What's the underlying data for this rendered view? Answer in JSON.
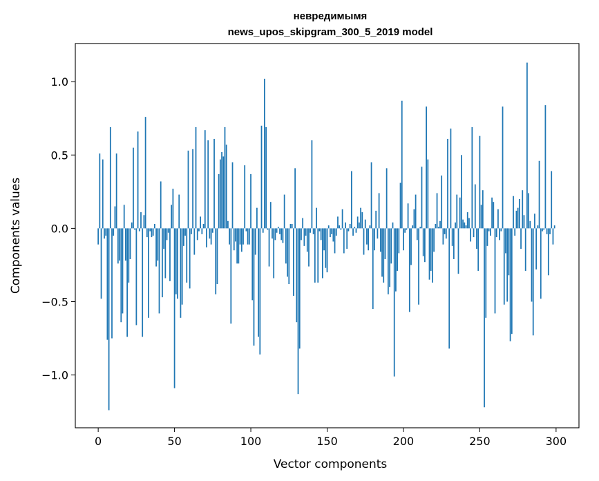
{
  "chart_data": {
    "type": "bar",
    "title": "невредимымя",
    "subtitle": "news_upos_skipgram_300_5_2019 model",
    "xlabel": "Vector components",
    "ylabel": "Components values",
    "xlim": [
      -15,
      315
    ],
    "ylim": [
      -1.36,
      1.26
    ],
    "xticks": [
      0,
      50,
      100,
      150,
      200,
      250,
      300
    ],
    "yticks": [
      -1.0,
      -0.5,
      0.0,
      0.5,
      1.0
    ],
    "ytick_labels": [
      "−1.0",
      "−0.5",
      "0.0",
      "0.5",
      "1.0"
    ],
    "grid": false,
    "legend": "none",
    "color": "#1f77b4",
    "categories_count": 300,
    "values": [
      -0.11,
      0.51,
      -0.48,
      0.47,
      -0.07,
      -0.05,
      -0.76,
      -1.24,
      0.69,
      -0.75,
      -0.05,
      0.15,
      0.51,
      -0.24,
      -0.22,
      -0.64,
      -0.58,
      0.16,
      -0.22,
      -0.74,
      -0.37,
      -0.21,
      0.04,
      0.55,
      -0.01,
      -0.66,
      0.66,
      -0.02,
      0.11,
      -0.74,
      0.09,
      0.76,
      -0.06,
      -0.61,
      -0.02,
      -0.06,
      -0.05,
      0.03,
      -0.26,
      -0.22,
      -0.58,
      0.32,
      -0.47,
      -0.14,
      -0.34,
      -0.08,
      -0.03,
      -0.36,
      0.16,
      0.27,
      -1.09,
      -0.45,
      -0.48,
      0.23,
      -0.61,
      -0.52,
      -0.12,
      -0.05,
      -0.37,
      0.53,
      -0.41,
      -0.04,
      0.54,
      -0.18,
      0.69,
      -0.08,
      -0.02,
      0.08,
      -0.04,
      0.03,
      0.67,
      -0.13,
      0.6,
      -0.07,
      -0.11,
      -0.03,
      0.61,
      -0.45,
      -0.38,
      0.37,
      0.47,
      0.52,
      0.49,
      0.69,
      0.57,
      0.05,
      -0.11,
      -0.65,
      0.45,
      -0.15,
      -0.09,
      -0.24,
      -0.24,
      -0.11,
      -0.16,
      -0.11,
      0.43,
      -0.02,
      -0.11,
      -0.11,
      0.37,
      -0.49,
      -0.8,
      -0.18,
      0.14,
      -0.74,
      -0.86,
      0.7,
      -0.03,
      1.02,
      0.69,
      -0.01,
      -0.26,
      0.18,
      -0.07,
      -0.34,
      -0.08,
      -0.03,
      0.01,
      -0.04,
      -0.08,
      -0.1,
      0.23,
      -0.24,
      -0.33,
      -0.38,
      0.03,
      0.03,
      -0.46,
      0.41,
      -0.64,
      -1.13,
      -0.82,
      -0.08,
      0.07,
      -0.12,
      -0.05,
      -0.16,
      -0.26,
      -0.03,
      0.6,
      -0.04,
      -0.37,
      0.14,
      -0.37,
      -0.02,
      -0.08,
      -0.34,
      -0.15,
      -0.27,
      -0.3,
      0.02,
      -0.06,
      -0.04,
      -0.09,
      -0.17,
      -0.05,
      0.08,
      0.02,
      -0.01,
      0.13,
      -0.17,
      0.04,
      -0.14,
      -0.02,
      0.03,
      0.39,
      -0.05,
      0.01,
      -0.03,
      0.08,
      0.04,
      0.14,
      0.11,
      -0.18,
      0.06,
      -0.11,
      -0.15,
      0.02,
      0.45,
      -0.55,
      -0.15,
      0.12,
      -0.07,
      0.24,
      -0.16,
      -0.33,
      -0.37,
      -0.21,
      0.41,
      -0.45,
      -0.4,
      -0.24,
      0.04,
      -1.01,
      -0.43,
      -0.29,
      -0.17,
      0.31,
      0.87,
      -0.15,
      -0.03,
      -0.01,
      0.17,
      -0.57,
      -0.25,
      0.02,
      0.13,
      0.23,
      -0.08,
      -0.52,
      0.01,
      0.42,
      -0.19,
      -0.23,
      0.83,
      0.47,
      -0.35,
      -0.29,
      -0.37,
      -0.16,
      0.03,
      0.24,
      0.01,
      0.05,
      0.36,
      -0.11,
      -0.04,
      -0.07,
      0.61,
      -0.82,
      0.68,
      -0.12,
      -0.21,
      0.04,
      0.23,
      -0.31,
      0.21,
      0.5,
      0.06,
      0.04,
      0.02,
      0.11,
      0.07,
      -0.09,
      0.69,
      -0.06,
      0.3,
      -0.14,
      -0.29,
      0.63,
      0.16,
      0.26,
      -1.22,
      -0.61,
      -0.12,
      -0.02,
      -0.05,
      0.21,
      0.18,
      -0.58,
      -0.06,
      0.13,
      -0.08,
      -0.02,
      0.83,
      -0.52,
      -0.17,
      -0.5,
      -0.32,
      -0.77,
      -0.72,
      0.22,
      -0.05,
      0.12,
      0.14,
      0.2,
      -0.14,
      0.26,
      0.09,
      -0.29,
      1.13,
      0.24,
      0.05,
      -0.5,
      -0.73,
      0.1,
      -0.28,
      0.02,
      0.46,
      -0.48,
      -0.02,
      -0.01,
      0.84,
      -0.04,
      -0.32,
      -0.04,
      0.39,
      -0.11,
      0.02
    ]
  }
}
